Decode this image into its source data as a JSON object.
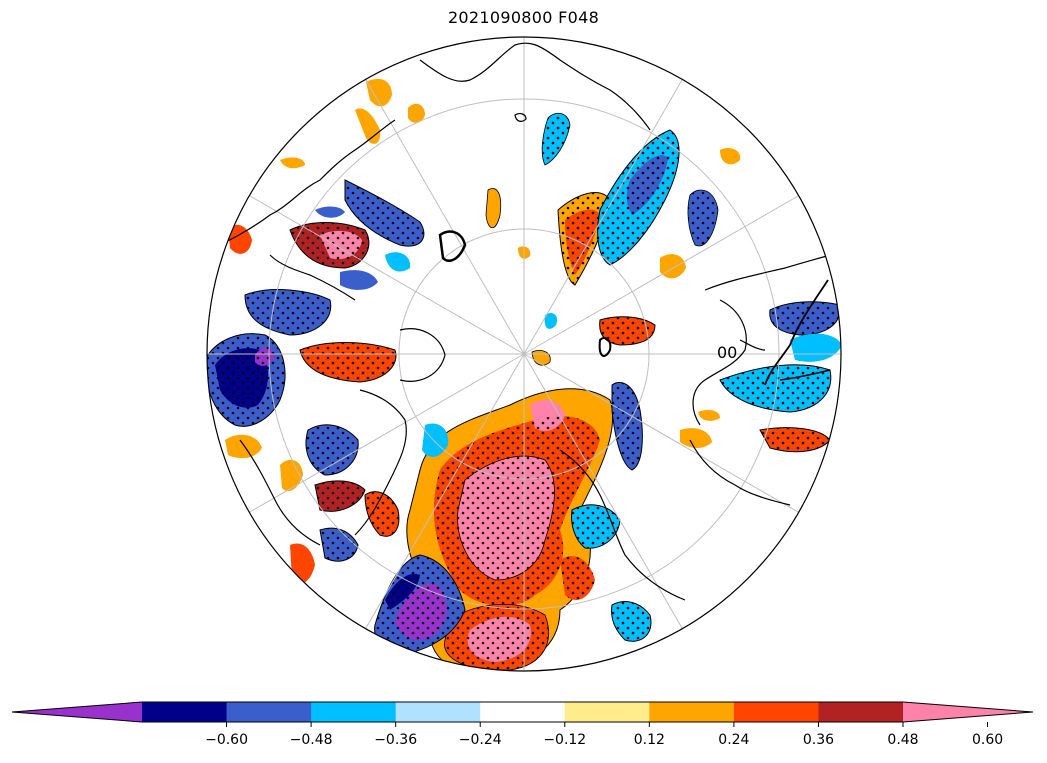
{
  "title": "2021090800 F048",
  "colorbar": {
    "extend": "both",
    "colors": [
      "#9932cc",
      "#00008b",
      "#3a5fcd",
      "#00bfff",
      "#b0e2ff",
      "#ffffff",
      "#ffec8b",
      "#ffa500",
      "#ff4500",
      "#b22222",
      "#ff82ab"
    ],
    "ticks": [
      -0.6,
      -0.48,
      -0.36,
      -0.24,
      -0.12,
      0.12,
      0.24,
      0.36,
      0.48,
      0.6
    ],
    "tick_labels": [
      "−0.60",
      "−0.48",
      "−0.36",
      "−0.24",
      "−0.12",
      "0.12",
      "0.24",
      "0.36",
      "0.48",
      "0.60"
    ]
  },
  "map": {
    "projection": "north-polar-stereographic",
    "gridlines": true,
    "stippling": true,
    "contour_label": "00"
  }
}
